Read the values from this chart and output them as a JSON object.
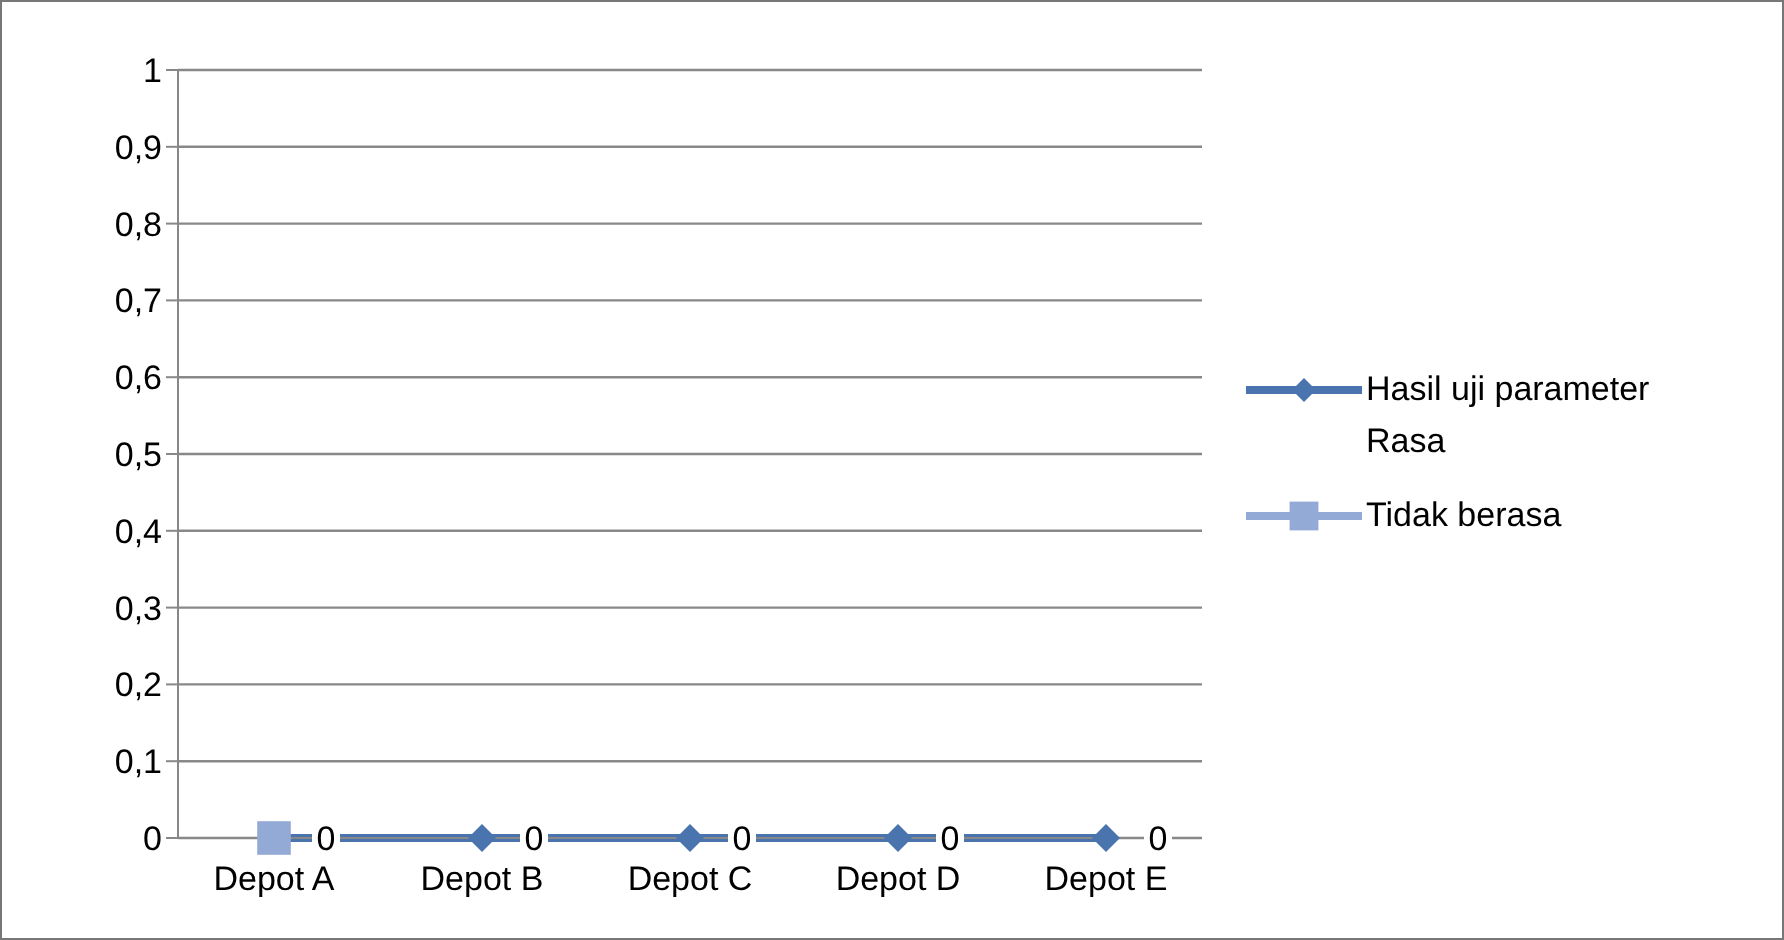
{
  "chart_data": {
    "type": "line",
    "categories": [
      "Depot A",
      "Depot B",
      "Depot C",
      "Depot D",
      "Depot E"
    ],
    "series": [
      {
        "name": "Hasil uji parameter Rasa",
        "color": "#4a74ad",
        "values": [
          0,
          0,
          0,
          0,
          0
        ],
        "marker": "diamond",
        "value_labels": [
          "0",
          "0",
          "0",
          "0",
          "0"
        ]
      },
      {
        "name": "Tidak berasa",
        "color": "#94aad6",
        "values": [
          0,
          null,
          null,
          null,
          null
        ],
        "marker": "square"
      }
    ],
    "ylim": [
      0,
      1
    ],
    "yticks": [
      0,
      {
        "value": 0.1,
        "label": "0,1"
      },
      {
        "value": 0.2,
        "label": "0,2"
      },
      {
        "value": 0.3,
        "label": "0,3"
      },
      {
        "value": 0.4,
        "label": "0,4"
      },
      {
        "value": 0.5,
        "label": "0,5"
      },
      {
        "value": 0.6,
        "label": "0,6"
      },
      {
        "value": 0.7,
        "label": "0,7"
      },
      {
        "value": 0.8,
        "label": "0,8"
      },
      {
        "value": 0.9,
        "label": "0,9"
      },
      1
    ],
    "grid": "y",
    "legend": "right"
  }
}
